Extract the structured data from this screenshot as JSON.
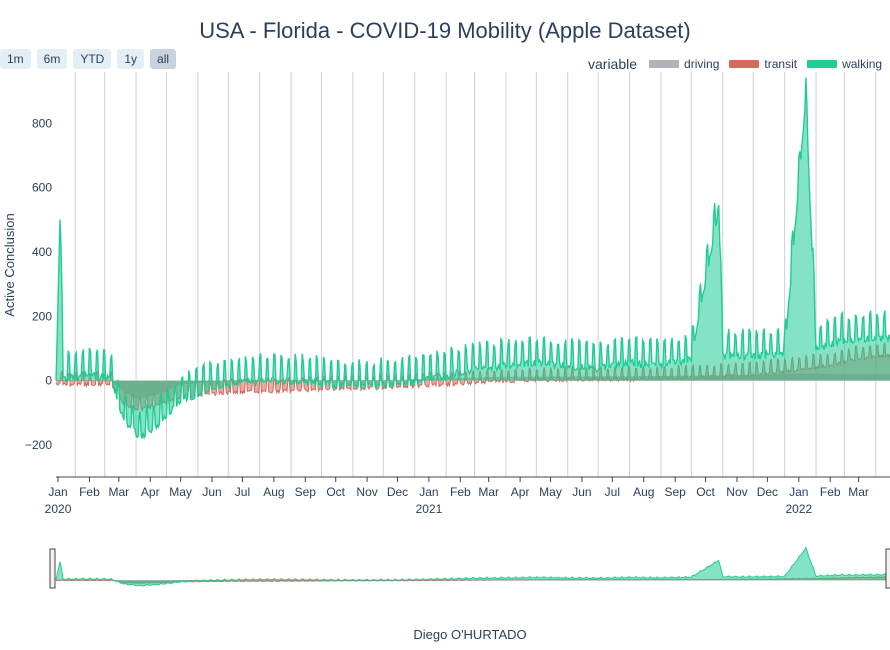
{
  "title": "USA - Florida - COVID-19 Mobility (Apple Dataset)",
  "range_buttons": [
    "1m",
    "6m",
    "YTD",
    "1y",
    "all"
  ],
  "active_range": "all",
  "footer": "Diego O'HURTADO",
  "chart_data": {
    "type": "area",
    "title": "USA - Florida - COVID-19 Mobility (Apple Dataset)",
    "ylabel": "Active Conclusion",
    "xlabel": "",
    "x_range": [
      "2020-01-13",
      "2022-04-15"
    ],
    "ylim": [
      -300,
      960
    ],
    "y_ticks": [
      -200,
      0,
      200,
      400,
      600,
      800
    ],
    "y_tick_labels": [
      "−200",
      "0",
      "200",
      "400",
      "600",
      "800"
    ],
    "x_ticks": [
      {
        "date": "2020-01-15",
        "label": "Jan",
        "year": "2020"
      },
      {
        "date": "2020-02-15",
        "label": "Feb"
      },
      {
        "date": "2020-03-15",
        "label": "Mar"
      },
      {
        "date": "2020-04-15",
        "label": "Apr"
      },
      {
        "date": "2020-05-15",
        "label": "May"
      },
      {
        "date": "2020-06-15",
        "label": "Jun"
      },
      {
        "date": "2020-07-15",
        "label": "Jul"
      },
      {
        "date": "2020-08-15",
        "label": "Aug"
      },
      {
        "date": "2020-09-15",
        "label": "Sep"
      },
      {
        "date": "2020-10-15",
        "label": "Oct"
      },
      {
        "date": "2020-11-15",
        "label": "Nov"
      },
      {
        "date": "2020-12-15",
        "label": "Dec"
      },
      {
        "date": "2021-01-15",
        "label": "Jan",
        "year": "2021"
      },
      {
        "date": "2021-02-15",
        "label": "Feb"
      },
      {
        "date": "2021-03-15",
        "label": "Mar"
      },
      {
        "date": "2021-04-15",
        "label": "Apr"
      },
      {
        "date": "2021-05-15",
        "label": "May"
      },
      {
        "date": "2021-06-15",
        "label": "Jun"
      },
      {
        "date": "2021-07-15",
        "label": "Jul"
      },
      {
        "date": "2021-08-15",
        "label": "Aug"
      },
      {
        "date": "2021-09-15",
        "label": "Sep"
      },
      {
        "date": "2021-10-15",
        "label": "Oct"
      },
      {
        "date": "2021-11-15",
        "label": "Nov"
      },
      {
        "date": "2021-12-15",
        "label": "Dec"
      },
      {
        "date": "2022-01-15",
        "label": "Jan",
        "year": "2022"
      },
      {
        "date": "2022-02-15",
        "label": "Feb"
      },
      {
        "date": "2022-03-15",
        "label": "Mar"
      }
    ],
    "legend_title": "variable",
    "legend_position": "top-right",
    "grid": "vertical",
    "series": [
      {
        "name": "driving",
        "color": "#b0b0b8",
        "x": [
          "2020-01-13",
          "2020-03-08",
          "2020-03-15",
          "2020-04-01",
          "2020-04-25",
          "2020-05-15",
          "2020-07-01",
          "2020-09-01",
          "2020-12-01",
          "2021-02-01",
          "2021-04-01",
          "2021-08-01",
          "2021-12-01",
          "2022-01-15",
          "2022-03-01",
          "2022-04-15"
        ],
        "values": [
          0,
          0,
          -20,
          -55,
          -40,
          -10,
          0,
          0,
          0,
          5,
          10,
          12,
          15,
          20,
          18,
          18
        ]
      },
      {
        "name": "transit",
        "color": "#d46a5a",
        "x": [
          "2020-01-13",
          "2020-03-08",
          "2020-03-20",
          "2020-04-05",
          "2020-04-25",
          "2020-05-15",
          "2020-07-01",
          "2020-09-01",
          "2020-12-01",
          "2021-02-01",
          "2021-04-01",
          "2021-06-01",
          "2021-08-01",
          "2021-10-01",
          "2021-12-01",
          "2022-01-15",
          "2022-02-15",
          "2022-03-15",
          "2022-04-15"
        ],
        "values": [
          0,
          0,
          -60,
          -80,
          -60,
          -40,
          -25,
          -20,
          -10,
          0,
          10,
          15,
          15,
          20,
          30,
          45,
          60,
          80,
          90
        ]
      },
      {
        "name": "walking",
        "color": "#1fcc95",
        "x": [
          "2020-01-13",
          "2020-01-17",
          "2020-01-20",
          "2020-02-15",
          "2020-03-08",
          "2020-03-20",
          "2020-04-05",
          "2020-04-25",
          "2020-05-15",
          "2020-06-15",
          "2020-07-15",
          "2020-08-15",
          "2020-09-15",
          "2020-10-15",
          "2020-11-15",
          "2020-12-15",
          "2021-01-05",
          "2021-02-01",
          "2021-03-01",
          "2021-04-01",
          "2021-05-01",
          "2021-06-01",
          "2021-07-01",
          "2021-08-01",
          "2021-09-01",
          "2021-10-01",
          "2021-10-28",
          "2021-11-01",
          "2021-12-01",
          "2022-01-01",
          "2022-01-22",
          "2022-02-01",
          "2022-03-01",
          "2022-04-15"
        ],
        "values": [
          20,
          530,
          30,
          40,
          30,
          -100,
          -150,
          -110,
          -40,
          0,
          20,
          25,
          20,
          10,
          5,
          15,
          20,
          40,
          60,
          70,
          80,
          70,
          60,
          80,
          70,
          90,
          560,
          100,
          100,
          110,
          900,
          120,
          150,
          160
        ]
      }
    ]
  }
}
